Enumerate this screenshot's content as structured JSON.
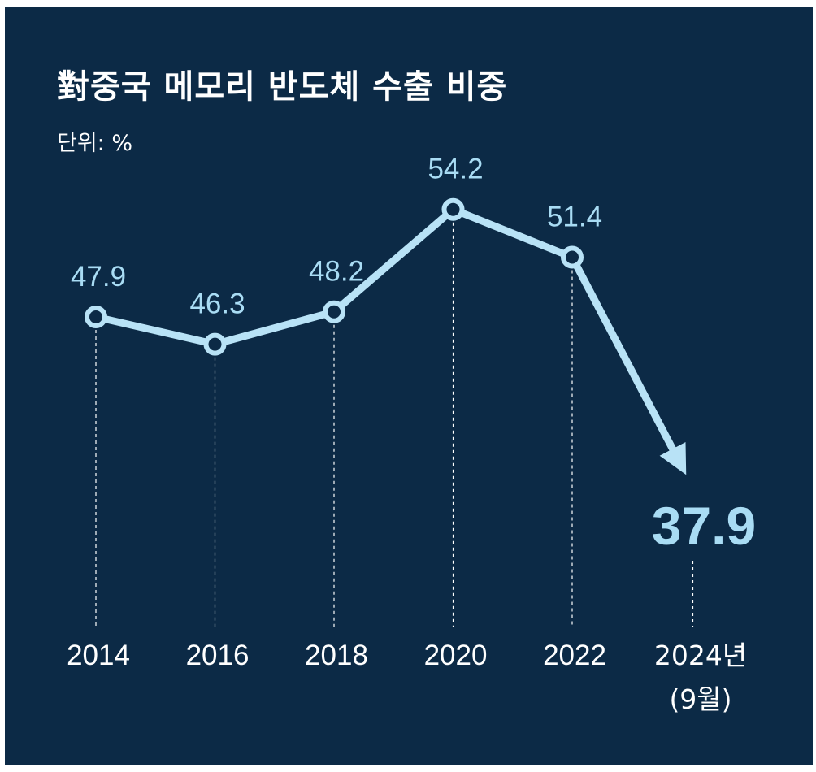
{
  "chart_data": {
    "type": "line",
    "title": "對중국 메모리 반도체 수출 비중",
    "unit_label": "단위: %",
    "categories": [
      "2014",
      "2016",
      "2018",
      "2020",
      "2022",
      "2024년"
    ],
    "category_sublabels": [
      "",
      "",
      "",
      "",
      "",
      "(9월)"
    ],
    "values": [
      47.9,
      46.3,
      48.2,
      54.2,
      51.4,
      37.9
    ],
    "value_labels": [
      "47.9",
      "46.3",
      "48.2",
      "54.2",
      "51.4",
      "37.9"
    ],
    "highlight_last": true,
    "last_point_style": "arrow",
    "grid": false,
    "guide_lines": "dashed-vertical",
    "colors": {
      "background": "#0c2a46",
      "line": "#b8e2f6",
      "marker_fill": "#0c2a46",
      "label": "#a9dcf4",
      "text": "#ffffff"
    }
  }
}
